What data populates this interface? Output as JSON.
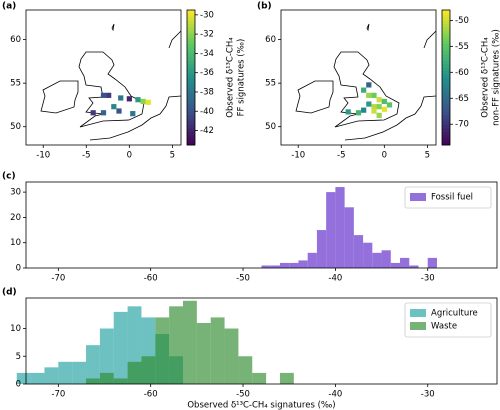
{
  "chart_data": [
    {
      "type": "map",
      "panel_label": "(a)",
      "xlim": [
        -12,
        6
      ],
      "ylim": [
        47.9,
        63.4
      ],
      "xticks": [
        -10,
        -5,
        0,
        5
      ],
      "yticks": [
        50,
        55,
        60
      ],
      "colormap": "viridis",
      "colorbar_label": [
        "Observed δ¹³C-CH₄",
        "FF signatures (‰)"
      ],
      "clim": [
        -43.5,
        -29.5
      ],
      "cticks": [
        -42,
        -40,
        -38,
        -36,
        -34,
        -32,
        -30
      ],
      "cells": {
        "lon": [
          -3,
          -2.4,
          -1,
          0,
          1,
          1.6,
          2.2,
          -1.2,
          -3,
          0.4,
          -1.8,
          -4.2
        ],
        "lat": [
          53.6,
          53.6,
          53.3,
          53.2,
          53.1,
          52.9,
          52.8,
          51.8,
          51.6,
          51.5,
          52.3,
          51.6
        ],
        "values": [
          -40,
          -41,
          -38,
          -42,
          -36,
          -32,
          -30,
          -40,
          -39,
          -38,
          -37,
          -41
        ]
      }
    },
    {
      "type": "map",
      "panel_label": "(b)",
      "xlim": [
        -12,
        6
      ],
      "ylim": [
        47.9,
        63.4
      ],
      "xticks": [
        -10,
        -5,
        0,
        5
      ],
      "yticks": [
        50,
        55,
        60
      ],
      "colormap": "viridis",
      "colorbar_label": [
        "Observed δ¹³C-CH₄",
        "non-FF signatures (‰)"
      ],
      "clim": [
        -74,
        -48
      ],
      "cticks": [
        -70,
        -65,
        -60,
        -55,
        -50
      ],
      "cells": {
        "lon": [
          -2.4,
          -1.8,
          -1.2,
          -0.6,
          0,
          -1.8,
          -1.2,
          -0.6,
          0.6,
          -2.4,
          -1.2,
          -3,
          -0.6,
          0,
          -4.2,
          -1.8
        ],
        "lat": [
          54.2,
          53.6,
          53.6,
          53.1,
          52.9,
          52.6,
          52.3,
          52.3,
          52.5,
          51.9,
          51.8,
          51.6,
          51.3,
          52,
          51.7,
          54.8
        ],
        "values": [
          -58,
          -52,
          -54,
          -50,
          -56,
          -60,
          -51,
          -53,
          -55,
          -62,
          -50,
          -57,
          -52,
          -49,
          -60,
          -66
        ]
      }
    },
    {
      "type": "histogram",
      "panel_label": "(c)",
      "xlim": [
        -73.5,
        -22.5
      ],
      "ylim": [
        0,
        34
      ],
      "xticks": [
        -70,
        -60,
        -50,
        -40,
        -30
      ],
      "yticks": [
        0,
        10,
        20,
        30
      ],
      "legend": "upper right",
      "series": [
        {
          "name": "Fossil fuel",
          "color": "#9370db",
          "bins": [
            -48,
            -47,
            -46,
            -45,
            -44,
            -43,
            -42,
            -41,
            -40,
            -39,
            -38,
            -37,
            -36,
            -35,
            -34,
            -33,
            -32,
            -31,
            -30,
            -29
          ],
          "values": [
            1,
            1,
            2,
            2,
            3,
            6,
            15,
            30,
            32,
            24,
            13,
            10,
            6,
            7,
            2,
            4,
            1,
            0,
            4
          ]
        }
      ]
    },
    {
      "type": "histogram",
      "panel_label": "(d)",
      "xlim": [
        -73.5,
        -22.5
      ],
      "ylim": [
        0,
        15.5
      ],
      "xticks": [
        -70,
        -60,
        -50,
        -40,
        -30
      ],
      "yticks": [
        0,
        5,
        10
      ],
      "legend": "upper right",
      "xlabel": "Observed δ¹³C-CH₄ signatures (‰)",
      "series": [
        {
          "name": "Agriculture",
          "color": "#20a0a0",
          "bins": [
            -74.5,
            -73,
            -71.5,
            -70,
            -68.5,
            -67,
            -65.5,
            -64,
            -62.5,
            -61,
            -59.5,
            -58,
            -56.5
          ],
          "values": [
            2,
            2,
            3,
            4,
            4,
            7,
            10,
            13,
            14,
            12,
            9,
            5
          ]
        },
        {
          "name": "Waste",
          "color": "#2e8b2e",
          "bins": [
            -67,
            -65.5,
            -64,
            -62.5,
            -61,
            -59.5,
            -58,
            -56.5,
            -55,
            -53.5,
            -52,
            -50.5,
            -49,
            -47.5,
            -46,
            -44.5
          ],
          "values": [
            1,
            2,
            1,
            4,
            5,
            12,
            14,
            15,
            11,
            12,
            10,
            5,
            2,
            0,
            2
          ]
        }
      ]
    }
  ]
}
